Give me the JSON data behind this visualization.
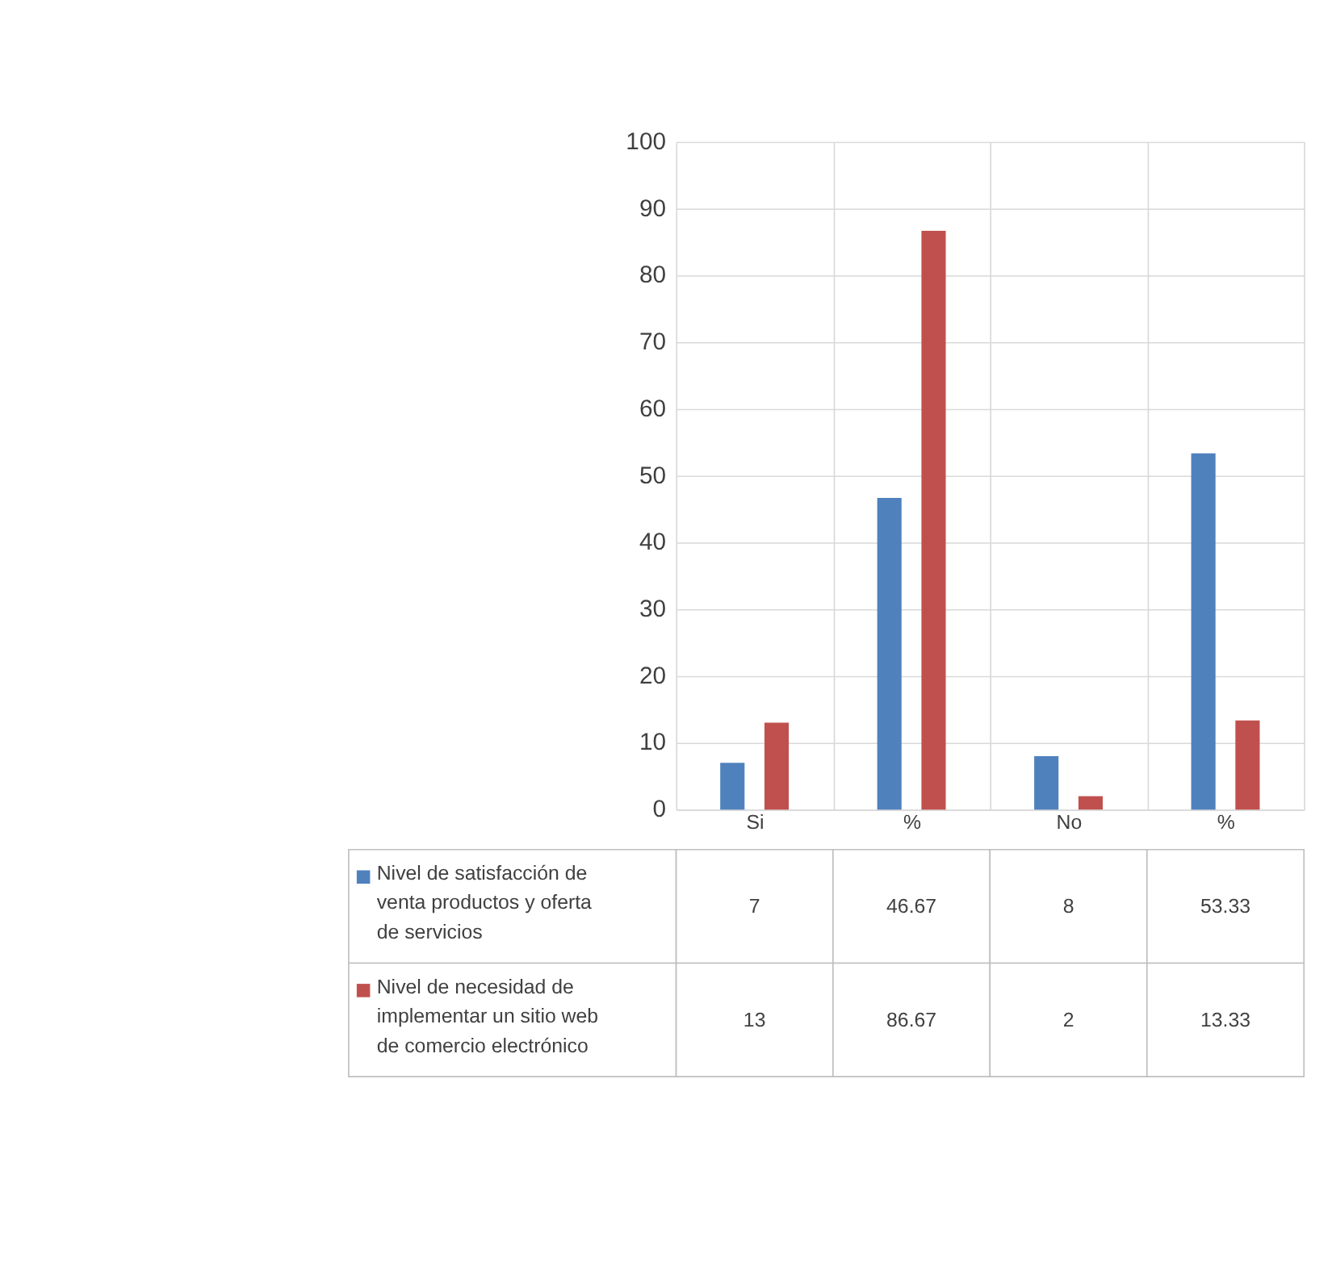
{
  "chart_data": {
    "type": "bar",
    "categories": [
      "Si",
      "%",
      "No",
      "%"
    ],
    "series": [
      {
        "name": "Nivel de satisfacción de venta productos y oferta de servicios",
        "color": "#4f81bd",
        "values": [
          7,
          46.67,
          8,
          53.33
        ]
      },
      {
        "name": "Nivel de necesidad de implementar un sitio web de comercio electrónico",
        "color": "#c0504d",
        "values": [
          13,
          86.67,
          2,
          13.33
        ]
      }
    ],
    "ylim": [
      0,
      100
    ],
    "yticks": [
      0,
      10,
      20,
      30,
      40,
      50,
      60,
      70,
      80,
      90,
      100
    ],
    "grid": true,
    "legend": "bottom",
    "data_labels": true
  }
}
